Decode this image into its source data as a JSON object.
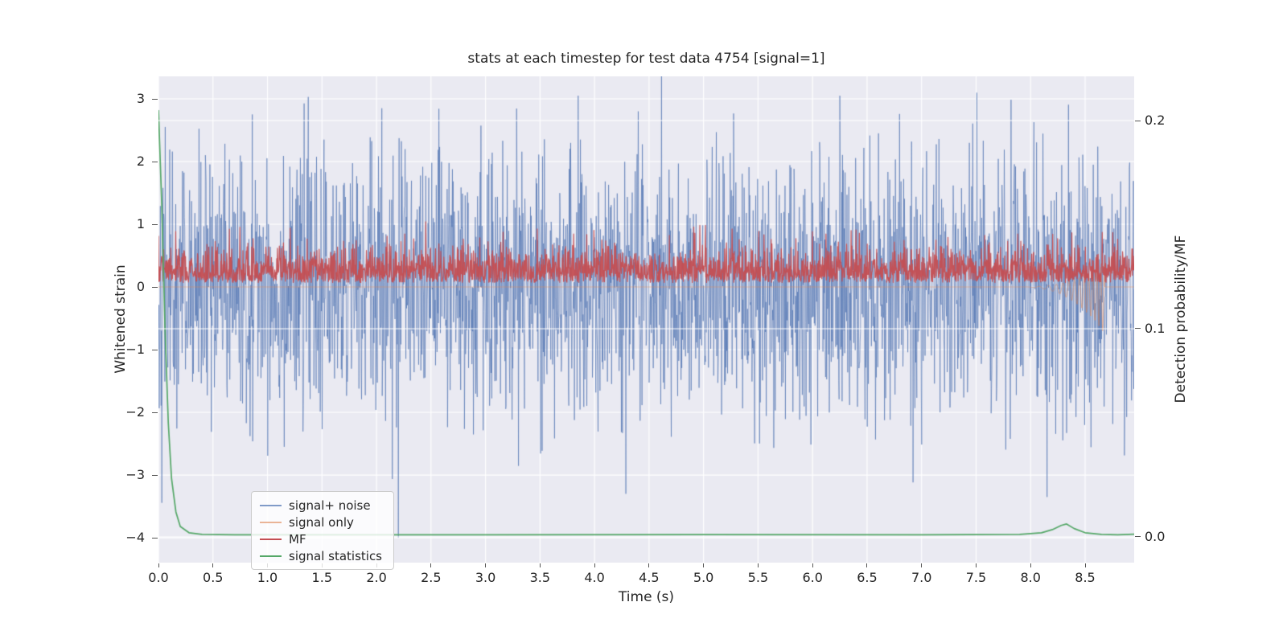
{
  "page": {
    "background": "#ffffff"
  },
  "chart_data": {
    "type": "line",
    "title": "stats at each timestep for test data 4754 [signal=1]",
    "xlabel": "Time (s)",
    "ylabel_left": "Whitened strain",
    "ylabel_right": "Detection probability/MF",
    "background_color": "#eaeaf2",
    "grid_color": "#ffffff",
    "text_color": "#262626",
    "grid": true,
    "x_range": [
      0,
      8.95
    ],
    "ylim_left": [
      -4.397,
      3.359
    ],
    "ylim_right": [
      -0.01236,
      0.22124
    ],
    "x_tick_values": [
      0,
      0.5,
      1,
      1.5,
      2,
      2.5,
      3,
      3.5,
      4,
      4.5,
      5,
      5.5,
      6,
      6.5,
      7,
      7.5,
      8,
      8.5
    ],
    "x_tick_labels": [
      "0.0",
      "0.5",
      "1.0",
      "1.5",
      "2.0",
      "2.5",
      "3.0",
      "3.5",
      "4.0",
      "4.5",
      "5.0",
      "5.5",
      "6.0",
      "6.5",
      "7.0",
      "7.5",
      "8.0",
      "8.5"
    ],
    "y_tick_values_left": [
      -4,
      -3,
      -2,
      -1,
      0,
      1,
      2,
      3
    ],
    "y_tick_labels_left": [
      "−4",
      "−3",
      "−2",
      "−1",
      "0",
      "1",
      "2",
      "3"
    ],
    "y_tick_values_right": [
      0,
      0.1,
      0.2
    ],
    "y_tick_labels_right": [
      "0.0",
      "0.1",
      "0.2"
    ],
    "legend": {
      "position": "lower left",
      "entries": [
        {
          "label": "signal+ noise",
          "color": "#4c72b0",
          "opacity": 0.7
        },
        {
          "label": "signal only",
          "color": "#dd8452",
          "opacity": 0.6
        },
        {
          "label": "MF",
          "color": "#c44e52",
          "opacity": 1
        },
        {
          "label": "signal statistics",
          "color": "#55a868",
          "opacity": 1
        }
      ]
    },
    "series": [
      {
        "name": "signal+ noise",
        "axis": "left",
        "type": "noise",
        "color": "#4c72b0",
        "alpha": 0.6,
        "line_width": 1,
        "mean": 0,
        "sigma": 1.05,
        "seed": 42,
        "samples": 2600,
        "spikes": [
          {
            "t": 2.05,
            "v": 2.85
          },
          {
            "t": 2.2,
            "v": -4.0
          },
          {
            "t": 3.85,
            "v": 3.05
          },
          {
            "t": 4.4,
            "v": 2.8
          },
          {
            "t": 6.25,
            "v": 3.05
          },
          {
            "t": 8.15,
            "v": -3.35
          }
        ]
      },
      {
        "name": "signal only",
        "axis": "left",
        "type": "chirp",
        "color": "#dd8452",
        "alpha": 0.55,
        "line_width": 1,
        "t_start": 7.9,
        "t_end": 8.68,
        "peak_amplitude": 0.55,
        "env_power": 2.5,
        "f_start": 4,
        "f_end": 30,
        "bias": -0.35
      },
      {
        "name": "MF",
        "axis": "left",
        "type": "noise-abs",
        "color": "#c44e52",
        "alpha": 0.95,
        "line_width": 1.2,
        "offset": 0.07,
        "sigma": 0.27,
        "max": 1.05,
        "seed": 7,
        "samples": 2600
      },
      {
        "name": "signal statistics",
        "axis": "right",
        "type": "points",
        "color": "#55a868",
        "alpha": 1,
        "line_width": 1.7,
        "points": [
          [
            0,
            0.205
          ],
          [
            0.03,
            0.16
          ],
          [
            0.06,
            0.1
          ],
          [
            0.09,
            0.055
          ],
          [
            0.12,
            0.028
          ],
          [
            0.16,
            0.012
          ],
          [
            0.2,
            0.005
          ],
          [
            0.28,
            0.002
          ],
          [
            0.4,
            0.0012
          ],
          [
            0.7,
            0.001
          ],
          [
            1.5,
            0.001
          ],
          [
            3,
            0.001
          ],
          [
            5,
            0.0011
          ],
          [
            7,
            0.001
          ],
          [
            7.9,
            0.0012
          ],
          [
            8.1,
            0.002
          ],
          [
            8.2,
            0.0035
          ],
          [
            8.28,
            0.0055
          ],
          [
            8.33,
            0.0062
          ],
          [
            8.4,
            0.004
          ],
          [
            8.5,
            0.002
          ],
          [
            8.65,
            0.0012
          ],
          [
            8.8,
            0.001
          ],
          [
            8.95,
            0.0013
          ]
        ]
      }
    ]
  }
}
